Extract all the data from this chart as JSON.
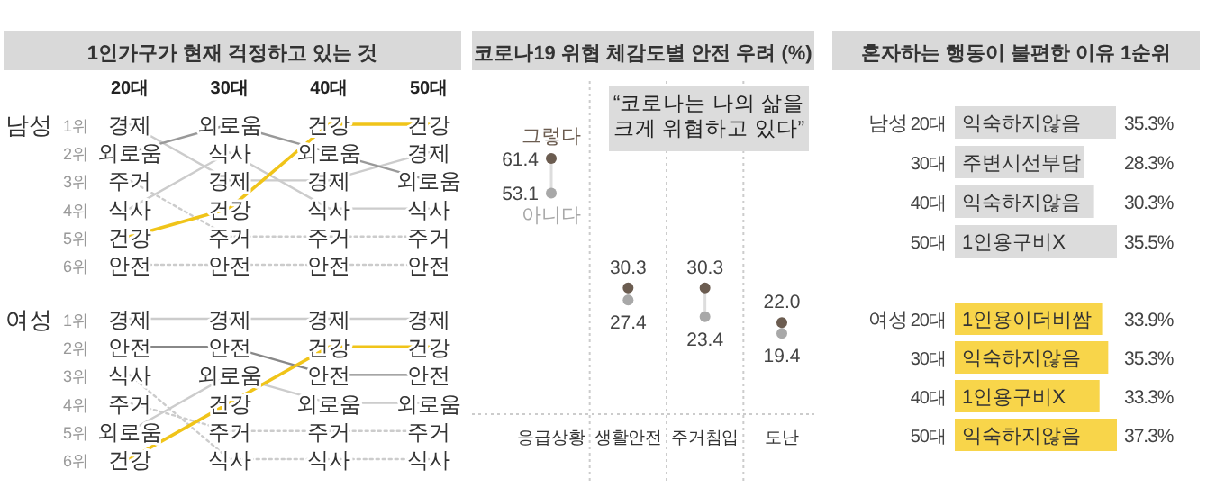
{
  "chart_data": [
    {
      "type": "line",
      "title": "1인가구가 현재 걱정하고 있는 것",
      "ylabel": "남성",
      "categories": [
        "20대",
        "30대",
        "40대",
        "50대"
      ],
      "ylim": [
        6,
        1
      ],
      "yticks": [
        {
          "value": 1,
          "label": "1위"
        },
        {
          "value": 2,
          "label": "2위"
        },
        {
          "value": 3,
          "label": "3위"
        },
        {
          "value": 4,
          "label": "4위"
        },
        {
          "value": 5,
          "label": "5위"
        },
        {
          "value": 6,
          "label": "6위"
        }
      ],
      "series": [
        {
          "name": "경제",
          "color": "#cccccc",
          "line_style": "solid",
          "values": [
            1,
            3,
            3,
            2
          ]
        },
        {
          "name": "외로움",
          "color": "#999999",
          "line_style": "solid",
          "values": [
            2,
            1,
            2,
            3
          ]
        },
        {
          "name": "주거",
          "color": "#cccccc",
          "line_style": "dotted",
          "values": [
            3,
            5,
            5,
            5
          ]
        },
        {
          "name": "식사",
          "color": "#cccccc",
          "line_style": "solid",
          "values": [
            4,
            2,
            4,
            4
          ]
        },
        {
          "name": "건강",
          "color": "#f0c419",
          "line_style": "solid",
          "values": [
            5,
            4,
            1,
            1
          ]
        },
        {
          "name": "안전",
          "color": "#cccccc",
          "line_style": "dotted",
          "values": [
            6,
            6,
            6,
            6
          ]
        }
      ]
    },
    {
      "type": "line",
      "ylabel": "여성",
      "categories": [
        "20대",
        "30대",
        "40대",
        "50대"
      ],
      "tick_labels": "y",
      "ylim": [
        6,
        1
      ],
      "yticks": [
        {
          "value": 1,
          "label": "1위"
        },
        {
          "value": 2,
          "label": "2위"
        },
        {
          "value": 3,
          "label": "3위"
        },
        {
          "value": 4,
          "label": "4위"
        },
        {
          "value": 5,
          "label": "5위"
        },
        {
          "value": 6,
          "label": "6위"
        }
      ],
      "series": [
        {
          "name": "경제",
          "color": "#cccccc",
          "line_style": "solid",
          "values": [
            1,
            1,
            1,
            1
          ]
        },
        {
          "name": "안전",
          "color": "#888888",
          "line_style": "solid",
          "values": [
            2,
            2,
            3,
            3
          ]
        },
        {
          "name": "식사",
          "color": "#cccccc",
          "line_style": "dotted",
          "values": [
            3,
            6,
            6,
            6
          ]
        },
        {
          "name": "주거",
          "color": "#cccccc",
          "line_style": "dotted",
          "values": [
            4,
            5,
            5,
            5
          ]
        },
        {
          "name": "외로움",
          "color": "#cccccc",
          "line_style": "solid",
          "values": [
            5,
            3,
            4,
            4
          ]
        },
        {
          "name": "건강",
          "color": "#f0c419",
          "line_style": "solid",
          "values": [
            6,
            4,
            2,
            2
          ]
        }
      ]
    },
    {
      "type": "scatter",
      "title": "코로나19 위협 체감도별 안전 우려 (%)",
      "categories": [
        "응급상황",
        "생활안전",
        "주거침입",
        "도난"
      ],
      "annotations": [
        "“코로나는 나의 삶을\n크게 위협하고 있다”"
      ],
      "series": [
        {
          "name": "그렇다",
          "color": "#6b5c50",
          "values": [
            61.4,
            30.3,
            30.3,
            22.0
          ],
          "value_labels": [
            "61.4",
            "30.3",
            "30.3",
            "22.0"
          ]
        },
        {
          "name": "아니다",
          "color": "#a8a8a8",
          "values": [
            53.1,
            27.4,
            23.4,
            19.4
          ],
          "value_labels": [
            "53.1",
            "27.4",
            "23.4",
            "19.4"
          ]
        }
      ]
    },
    {
      "type": "bar",
      "orientation": "horizontal",
      "title": "혼자하는 행동이 불편한 이유 1순위",
      "ylabel": "남성",
      "categories": [
        "20대",
        "30대",
        "40대",
        "50대"
      ],
      "values": [
        35.3,
        28.3,
        30.3,
        35.5
      ],
      "color": "#dcdcdc",
      "value_labels": [
        "35.3%",
        "28.3%",
        "30.3%",
        "35.5%"
      ],
      "annotations": [
        {
          "text": "익숙하지않음",
          "y": "20대"
        },
        {
          "text": "주변시선부담",
          "y": "30대"
        },
        {
          "text": "익숙하지않음",
          "y": "40대"
        },
        {
          "text": "1인용구비X",
          "y": "50대"
        }
      ]
    },
    {
      "type": "bar",
      "orientation": "horizontal",
      "ylabel": "여성",
      "categories": [
        "20대",
        "30대",
        "40대",
        "50대"
      ],
      "values": [
        33.9,
        35.3,
        33.3,
        37.3
      ],
      "color": "#f8d54a",
      "value_labels": [
        "33.9%",
        "35.3%",
        "33.3%",
        "37.3%"
      ],
      "annotations": [
        {
          "text": "1인용이더비쌈",
          "y": "20대"
        },
        {
          "text": "익숙하지않음",
          "y": "30대"
        },
        {
          "text": "1인용구비X",
          "y": "40대"
        },
        {
          "text": "익숙하지않음",
          "y": "50대"
        }
      ]
    }
  ]
}
